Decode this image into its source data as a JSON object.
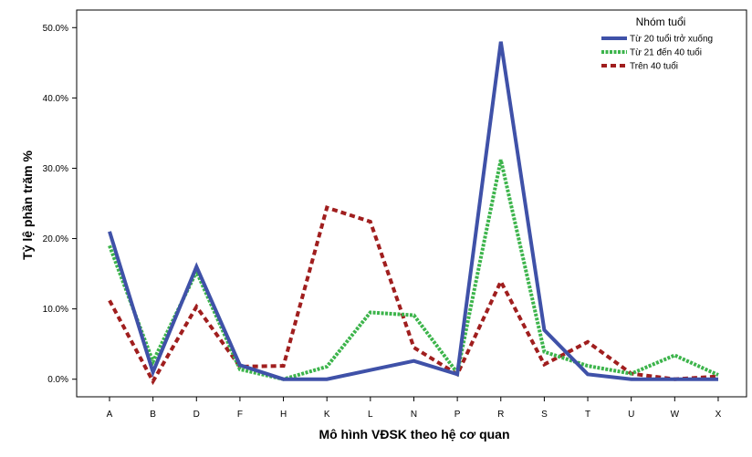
{
  "chart_data": {
    "type": "line",
    "xlabel": "Mô hình VĐSK theo hệ cơ quan",
    "ylabel": "Tỷ lệ phần trăm %",
    "categories": [
      "A",
      "B",
      "D",
      "F",
      "H",
      "K",
      "L",
      "N",
      "P",
      "R",
      "S",
      "T",
      "U",
      "W",
      "X"
    ],
    "ylim": [
      -2.5,
      52.5
    ],
    "yticks": [
      0,
      10,
      20,
      30,
      40,
      50
    ],
    "ytick_labels": [
      "0.0%",
      "10.0%",
      "20.0%",
      "30.0%",
      "40.0%",
      "50.0%"
    ],
    "grid": false,
    "legend": {
      "title": "Nhóm tuổi",
      "position": "top-right"
    },
    "series": [
      {
        "name": "Từ 20 tuổi trở xuống",
        "color": "#3f51a8",
        "style": "solid",
        "values": [
          21.0,
          1.0,
          16.0,
          2.0,
          0.0,
          0.0,
          1.3,
          2.6,
          0.7,
          48.0,
          7.0,
          0.7,
          0.0,
          0.0,
          0.0
        ]
      },
      {
        "name": "Từ 21 đến 40 tuổi",
        "color": "#3cb44b",
        "style": "dotted",
        "values": [
          19.0,
          2.5,
          15.3,
          1.4,
          0.0,
          1.8,
          9.5,
          9.1,
          0.9,
          31.2,
          3.9,
          1.9,
          0.8,
          3.4,
          0.6
        ]
      },
      {
        "name": "Trên 40 tuổi",
        "color": "#a01e1e",
        "style": "dashed",
        "values": [
          11.2,
          -0.3,
          10.3,
          1.8,
          1.9,
          24.4,
          22.4,
          4.5,
          0.7,
          13.9,
          2.1,
          5.3,
          0.8,
          0.0,
          0.4
        ]
      }
    ]
  }
}
